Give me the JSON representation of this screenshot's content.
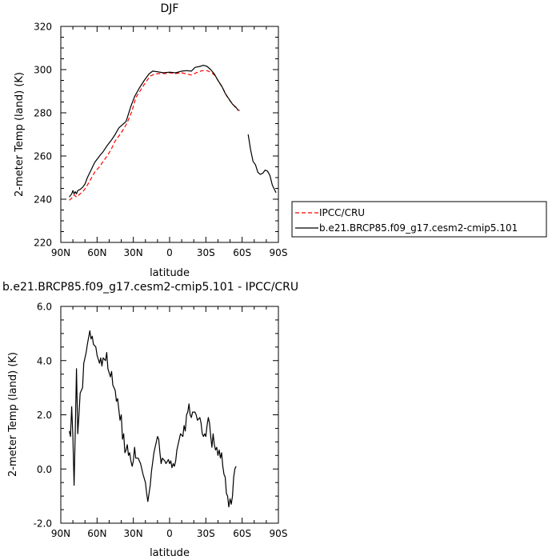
{
  "chart_data": [
    {
      "type": "line",
      "title": "DJF",
      "xlabel": "latitude",
      "ylabel": "2-meter Temp (land) (K)",
      "xlim": [
        90,
        -90
      ],
      "ylim": [
        220,
        320
      ],
      "xticks": [
        90,
        60,
        30,
        0,
        -30,
        -60,
        -90
      ],
      "xtick_labels": [
        "90N",
        "60N",
        "30N",
        "0",
        "30S",
        "60S",
        "90S"
      ],
      "yticks": [
        220,
        240,
        260,
        280,
        300,
        320
      ],
      "ytick_labels": [
        "220",
        "240",
        "260",
        "280",
        "300",
        "320"
      ],
      "legend_position": "right",
      "series": [
        {
          "name": "IPCC/CRU",
          "color": "#ff0000",
          "dash": "dashed",
          "segments": [
            [
              [
                83,
                239.5
              ],
              [
                81,
                240.5
              ],
              [
                79,
                242
              ],
              [
                77,
                241
              ],
              [
                75,
                242
              ],
              [
                73,
                243
              ],
              [
                71,
                244
              ],
              [
                68,
                246.5
              ],
              [
                65,
                249.5
              ],
              [
                62,
                252.5
              ],
              [
                58,
                255
              ],
              [
                55,
                257.5
              ],
              [
                51,
                260.5
              ],
              [
                48,
                263.5
              ],
              [
                45,
                267
              ],
              [
                41,
                270
              ],
              [
                38,
                272.5
              ],
              [
                35,
                275.5
              ],
              [
                31,
                281
              ],
              [
                28,
                287
              ],
              [
                24,
                290.5
              ],
              [
                20,
                294
              ],
              [
                16,
                297
              ],
              [
                12,
                298
              ],
              [
                8,
                298.2
              ],
              [
                3,
                298.2
              ],
              [
                0,
                298.5
              ],
              [
                -5,
                298.2
              ],
              [
                -10,
                298.5
              ],
              [
                -14,
                298
              ],
              [
                -18,
                297.5
              ],
              [
                -22,
                298.5
              ],
              [
                -27,
                299.5
              ],
              [
                -31,
                299.5
              ],
              [
                -35,
                298.5
              ],
              [
                -38,
                297
              ],
              [
                -41,
                294
              ],
              [
                -44,
                291.5
              ],
              [
                -47,
                288
              ],
              [
                -50,
                285.5
              ],
              [
                -53,
                283.5
              ],
              [
                -56,
                281.5
              ],
              [
                -58,
                281
              ]
            ]
          ]
        },
        {
          "name": "b.e21.BRCP85.f09_g17.cesm2-cmip5.101",
          "color": "#000000",
          "dash": "solid",
          "segments": [
            [
              [
                83,
                241
              ],
              [
                81,
                242.5
              ],
              [
                80,
                244
              ],
              [
                79,
                242.5
              ],
              [
                78,
                243.5
              ],
              [
                77,
                242.5
              ],
              [
                76,
                244
              ],
              [
                74,
                244.5
              ],
              [
                72,
                245.5
              ],
              [
                70,
                247
              ],
              [
                68,
                250
              ],
              [
                65,
                253.5
              ],
              [
                62,
                257
              ],
              [
                58,
                260
              ],
              [
                55,
                262
              ],
              [
                52,
                264.5
              ],
              [
                48,
                267.5
              ],
              [
                45,
                270
              ],
              [
                42,
                273
              ],
              [
                39,
                274.5
              ],
              [
                36,
                276
              ],
              [
                32,
                283
              ],
              [
                29,
                287.5
              ],
              [
                25,
                291.5
              ],
              [
                21,
                295
              ],
              [
                17,
                298
              ],
              [
                14,
                299.3
              ],
              [
                10,
                299
              ],
              [
                5,
                298.5
              ],
              [
                0,
                298.8
              ],
              [
                -5,
                298.5
              ],
              [
                -10,
                299.3
              ],
              [
                -14,
                299.5
              ],
              [
                -18,
                299.3
              ],
              [
                -21,
                301
              ],
              [
                -25,
                301.5
              ],
              [
                -28,
                302
              ],
              [
                -31,
                301.5
              ],
              [
                -34,
                300
              ],
              [
                -37,
                298
              ],
              [
                -40,
                295
              ],
              [
                -43,
                292.5
              ],
              [
                -46,
                289
              ],
              [
                -49,
                286.5
              ],
              [
                -52,
                284
              ],
              [
                -55,
                282.5
              ],
              [
                -57,
                281
              ]
            ],
            [
              [
                -65,
                270
              ],
              [
                -67,
                263
              ],
              [
                -69,
                257.5
              ],
              [
                -71,
                256
              ],
              [
                -73,
                252.5
              ],
              [
                -75,
                251.5
              ],
              [
                -77,
                252
              ],
              [
                -79,
                253.5
              ],
              [
                -81,
                253
              ],
              [
                -83,
                251
              ],
              [
                -85,
                246.5
              ],
              [
                -88,
                243
              ]
            ]
          ]
        }
      ]
    },
    {
      "type": "line",
      "title": "b.e21.BRCP85.f09_g17.cesm2-cmip5.101 - IPCC/CRU",
      "xlabel": "latitude",
      "ylabel": "2-meter Temp (land) (K)",
      "xlim": [
        90,
        -90
      ],
      "ylim": [
        -2.0,
        6.0
      ],
      "xticks": [
        90,
        60,
        30,
        0,
        -30,
        -60,
        -90
      ],
      "xtick_labels": [
        "90N",
        "60N",
        "30N",
        "0",
        "30S",
        "60S",
        "90S"
      ],
      "yticks": [
        -2.0,
        0.0,
        2.0,
        4.0,
        6.0
      ],
      "ytick_labels": [
        "-2.0",
        "0.0",
        "2.0",
        "4.0",
        "6.0"
      ],
      "series": [
        {
          "color": "#000000",
          "dash": "solid",
          "segments": [
            [
              [
                83,
                1.4
              ],
              [
                82,
                1.2
              ],
              [
                81,
                2.3
              ],
              [
                80,
                1.2
              ],
              [
                79,
                -0.6
              ],
              [
                78,
                1.4
              ],
              [
                77,
                3.7
              ],
              [
                76,
                1.3
              ],
              [
                75,
                2.0
              ],
              [
                74,
                2.8
              ],
              [
                72,
                3.0
              ],
              [
                71,
                3.9
              ],
              [
                69,
                4.3
              ],
              [
                68,
                4.6
              ],
              [
                66,
                5.1
              ],
              [
                65,
                4.8
              ],
              [
                64,
                4.9
              ],
              [
                63,
                4.6
              ],
              [
                61,
                4.5
              ],
              [
                60,
                4.2
              ],
              [
                58,
                3.9
              ],
              [
                57,
                4.1
              ],
              [
                56,
                3.8
              ],
              [
                55,
                4.1
              ],
              [
                53,
                4.0
              ],
              [
                52,
                4.3
              ],
              [
                51,
                3.7
              ],
              [
                49,
                3.4
              ],
              [
                48,
                3.6
              ],
              [
                47,
                3.1
              ],
              [
                45,
                2.9
              ],
              [
                44,
                2.5
              ],
              [
                43,
                2.6
              ],
              [
                42,
                2.2
              ],
              [
                41,
                1.8
              ],
              [
                40,
                2.0
              ],
              [
                39,
                1.1
              ],
              [
                38,
                1.3
              ],
              [
                37,
                0.6
              ],
              [
                36,
                0.7
              ],
              [
                35,
                0.9
              ],
              [
                34,
                0.5
              ],
              [
                33,
                0.6
              ],
              [
                32,
                0.3
              ],
              [
                31,
                0.1
              ],
              [
                30,
                0.3
              ],
              [
                29,
                0.8
              ],
              [
                28,
                0.4
              ],
              [
                26,
                0.4
              ],
              [
                24,
                0.2
              ],
              [
                22,
                -0.2
              ],
              [
                20,
                -0.5
              ],
              [
                19,
                -0.9
              ],
              [
                18,
                -1.2
              ],
              [
                17,
                -0.9
              ],
              [
                16,
                -0.6
              ],
              [
                15,
                -0.1
              ],
              [
                13,
                0.6
              ],
              [
                11,
                1.0
              ],
              [
                10,
                1.2
              ],
              [
                9,
                1.1
              ],
              [
                8,
                0.6
              ],
              [
                7,
                0.2
              ],
              [
                6,
                0.4
              ],
              [
                4,
                0.3
              ],
              [
                3,
                0.2
              ],
              [
                1,
                0.35
              ],
              [
                0,
                0.2
              ],
              [
                -1,
                0.3
              ],
              [
                -2,
                0.05
              ],
              [
                -3,
                0.2
              ],
              [
                -4,
                0.1
              ],
              [
                -5,
                0.3
              ],
              [
                -6,
                0.7
              ],
              [
                -8,
                1.1
              ],
              [
                -9,
                1.3
              ],
              [
                -11,
                1.2
              ],
              [
                -12,
                1.6
              ],
              [
                -13,
                1.4
              ],
              [
                -14,
                2.0
              ],
              [
                -15,
                2.1
              ],
              [
                -16,
                2.4
              ],
              [
                -17,
                2.0
              ],
              [
                -18,
                1.9
              ],
              [
                -19,
                2.1
              ],
              [
                -21,
                2.1
              ],
              [
                -22,
                2.0
              ],
              [
                -23,
                1.8
              ],
              [
                -25,
                1.9
              ],
              [
                -26,
                1.7
              ],
              [
                -27,
                1.3
              ],
              [
                -28,
                1.2
              ],
              [
                -29,
                1.3
              ],
              [
                -30,
                1.2
              ],
              [
                -31,
                1.6
              ],
              [
                -32,
                1.9
              ],
              [
                -33,
                1.7
              ],
              [
                -34,
                1.2
              ],
              [
                -35,
                0.8
              ],
              [
                -36,
                1.3
              ],
              [
                -37,
                0.9
              ],
              [
                -38,
                0.7
              ],
              [
                -39,
                0.8
              ],
              [
                -40,
                0.5
              ],
              [
                -41,
                0.7
              ],
              [
                -42,
                0.4
              ],
              [
                -43,
                0.6
              ],
              [
                -44,
                0.1
              ],
              [
                -45,
                -0.2
              ],
              [
                -46,
                -0.3
              ],
              [
                -47,
                -0.9
              ],
              [
                -48,
                -1.0
              ],
              [
                -49,
                -1.4
              ],
              [
                -50,
                -1.1
              ],
              [
                -51,
                -1.3
              ],
              [
                -52,
                -1.0
              ],
              [
                -53,
                -0.3
              ],
              [
                -54,
                0.0
              ],
              [
                -55,
                0.1
              ]
            ]
          ]
        }
      ]
    }
  ]
}
